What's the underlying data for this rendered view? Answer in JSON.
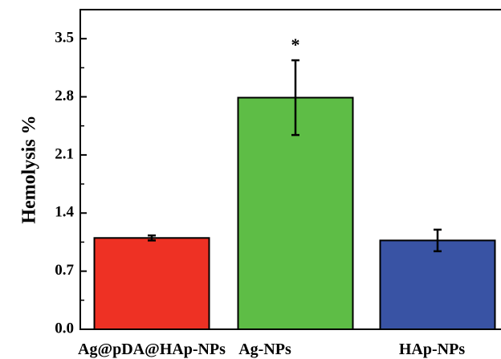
{
  "chart_data": {
    "type": "bar",
    "categories": [
      "Ag@pDA@HAp-NPs",
      "Ag-NPs",
      "HAp-NPs"
    ],
    "values": [
      1.1,
      2.79,
      1.07
    ],
    "errors": [
      0.03,
      0.45,
      0.13
    ],
    "colors": [
      "#ee3124",
      "#5ebd46",
      "#3953a4"
    ],
    "ylabel": "Hemolysis %",
    "xlabel": "",
    "ylim": [
      0,
      3.85
    ],
    "yticks": [
      "0.0",
      "0.7",
      "1.4",
      "2.1",
      "2.8",
      "3.5"
    ],
    "annotations": [
      {
        "category": "Ag-NPs",
        "text": "*"
      }
    ],
    "grid": false
  }
}
